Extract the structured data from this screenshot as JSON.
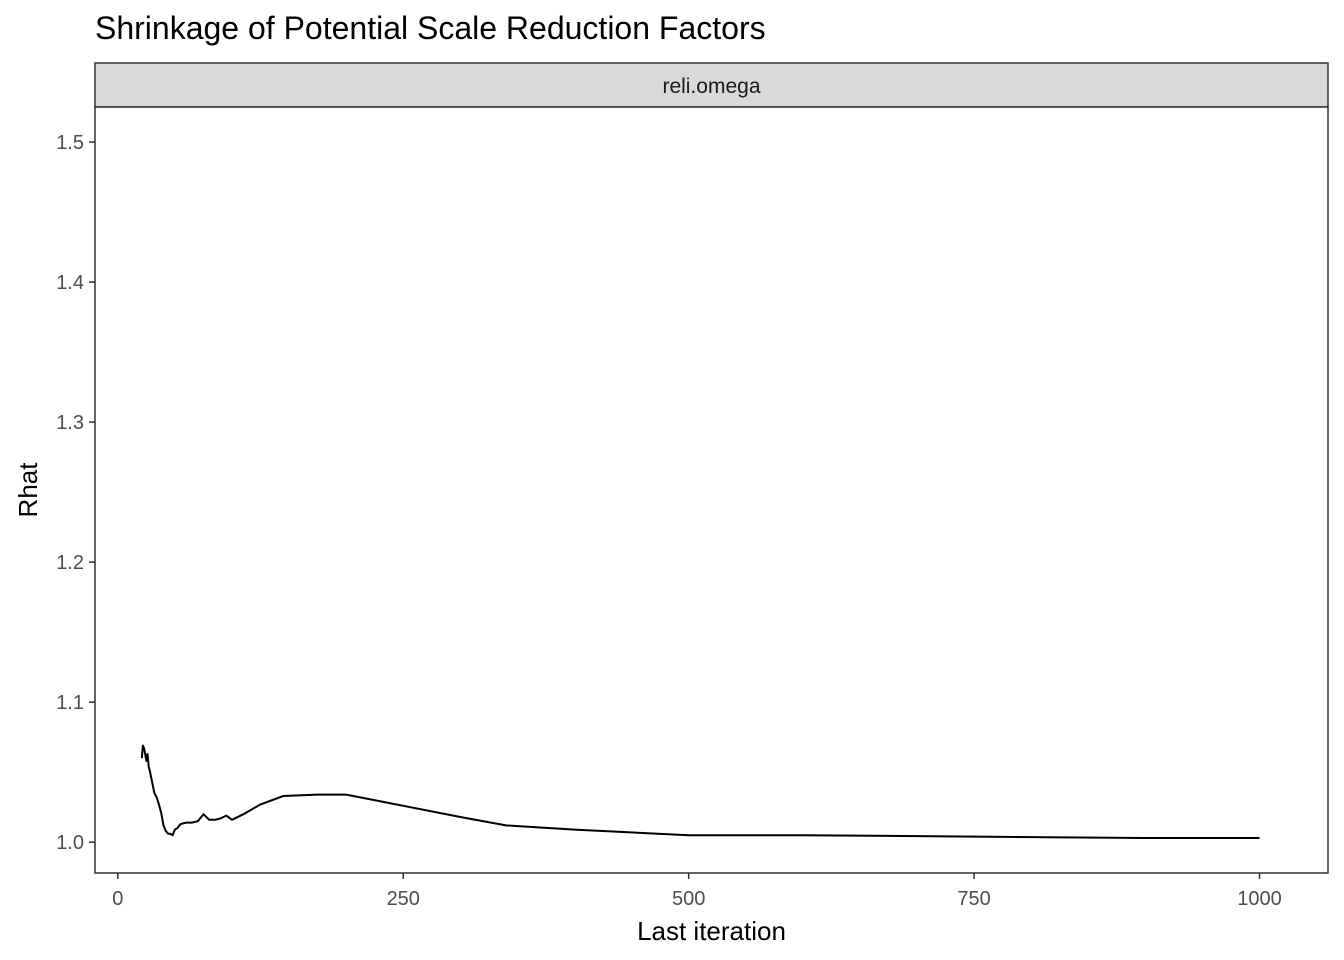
{
  "chart_data": {
    "type": "line",
    "title": "Shrinkage of Potential Scale Reduction Factors",
    "facet_label": "reli.omega",
    "xlabel": "Last iteration",
    "ylabel": "Rhat",
    "xlim": [
      -20,
      1060
    ],
    "ylim": [
      0.978,
      1.525
    ],
    "x_ticks": [
      0,
      250,
      500,
      750,
      1000
    ],
    "x_tick_labels": [
      "0",
      "250",
      "500",
      "750",
      "1000"
    ],
    "y_ticks": [
      1.0,
      1.1,
      1.2,
      1.3,
      1.4,
      1.5
    ],
    "y_tick_labels": [
      "1.0",
      "1.1",
      "1.2",
      "1.3",
      "1.4",
      "1.5"
    ],
    "grid": false,
    "series": [
      {
        "color": "#000000",
        "x": [
          21,
          22,
          23,
          24,
          25,
          26,
          27,
          28,
          30,
          32,
          34,
          36,
          38,
          40,
          42,
          44,
          46,
          48,
          50,
          52,
          55,
          60,
          65,
          70,
          75,
          80,
          85,
          90,
          95,
          100,
          110,
          125,
          145,
          175,
          200,
          250,
          300,
          340,
          400,
          500,
          600,
          750,
          900,
          1000
        ],
        "y": [
          1.06,
          1.069,
          1.067,
          1.063,
          1.058,
          1.063,
          1.054,
          1.051,
          1.043,
          1.035,
          1.032,
          1.027,
          1.021,
          1.012,
          1.008,
          1.006,
          1.006,
          1.005,
          1.009,
          1.01,
          1.013,
          1.014,
          1.014,
          1.015,
          1.02,
          1.016,
          1.016,
          1.017,
          1.019,
          1.016,
          1.02,
          1.027,
          1.033,
          1.034,
          1.034,
          1.026,
          1.018,
          1.012,
          1.009,
          1.005,
          1.005,
          1.004,
          1.003,
          1.003
        ]
      }
    ]
  }
}
